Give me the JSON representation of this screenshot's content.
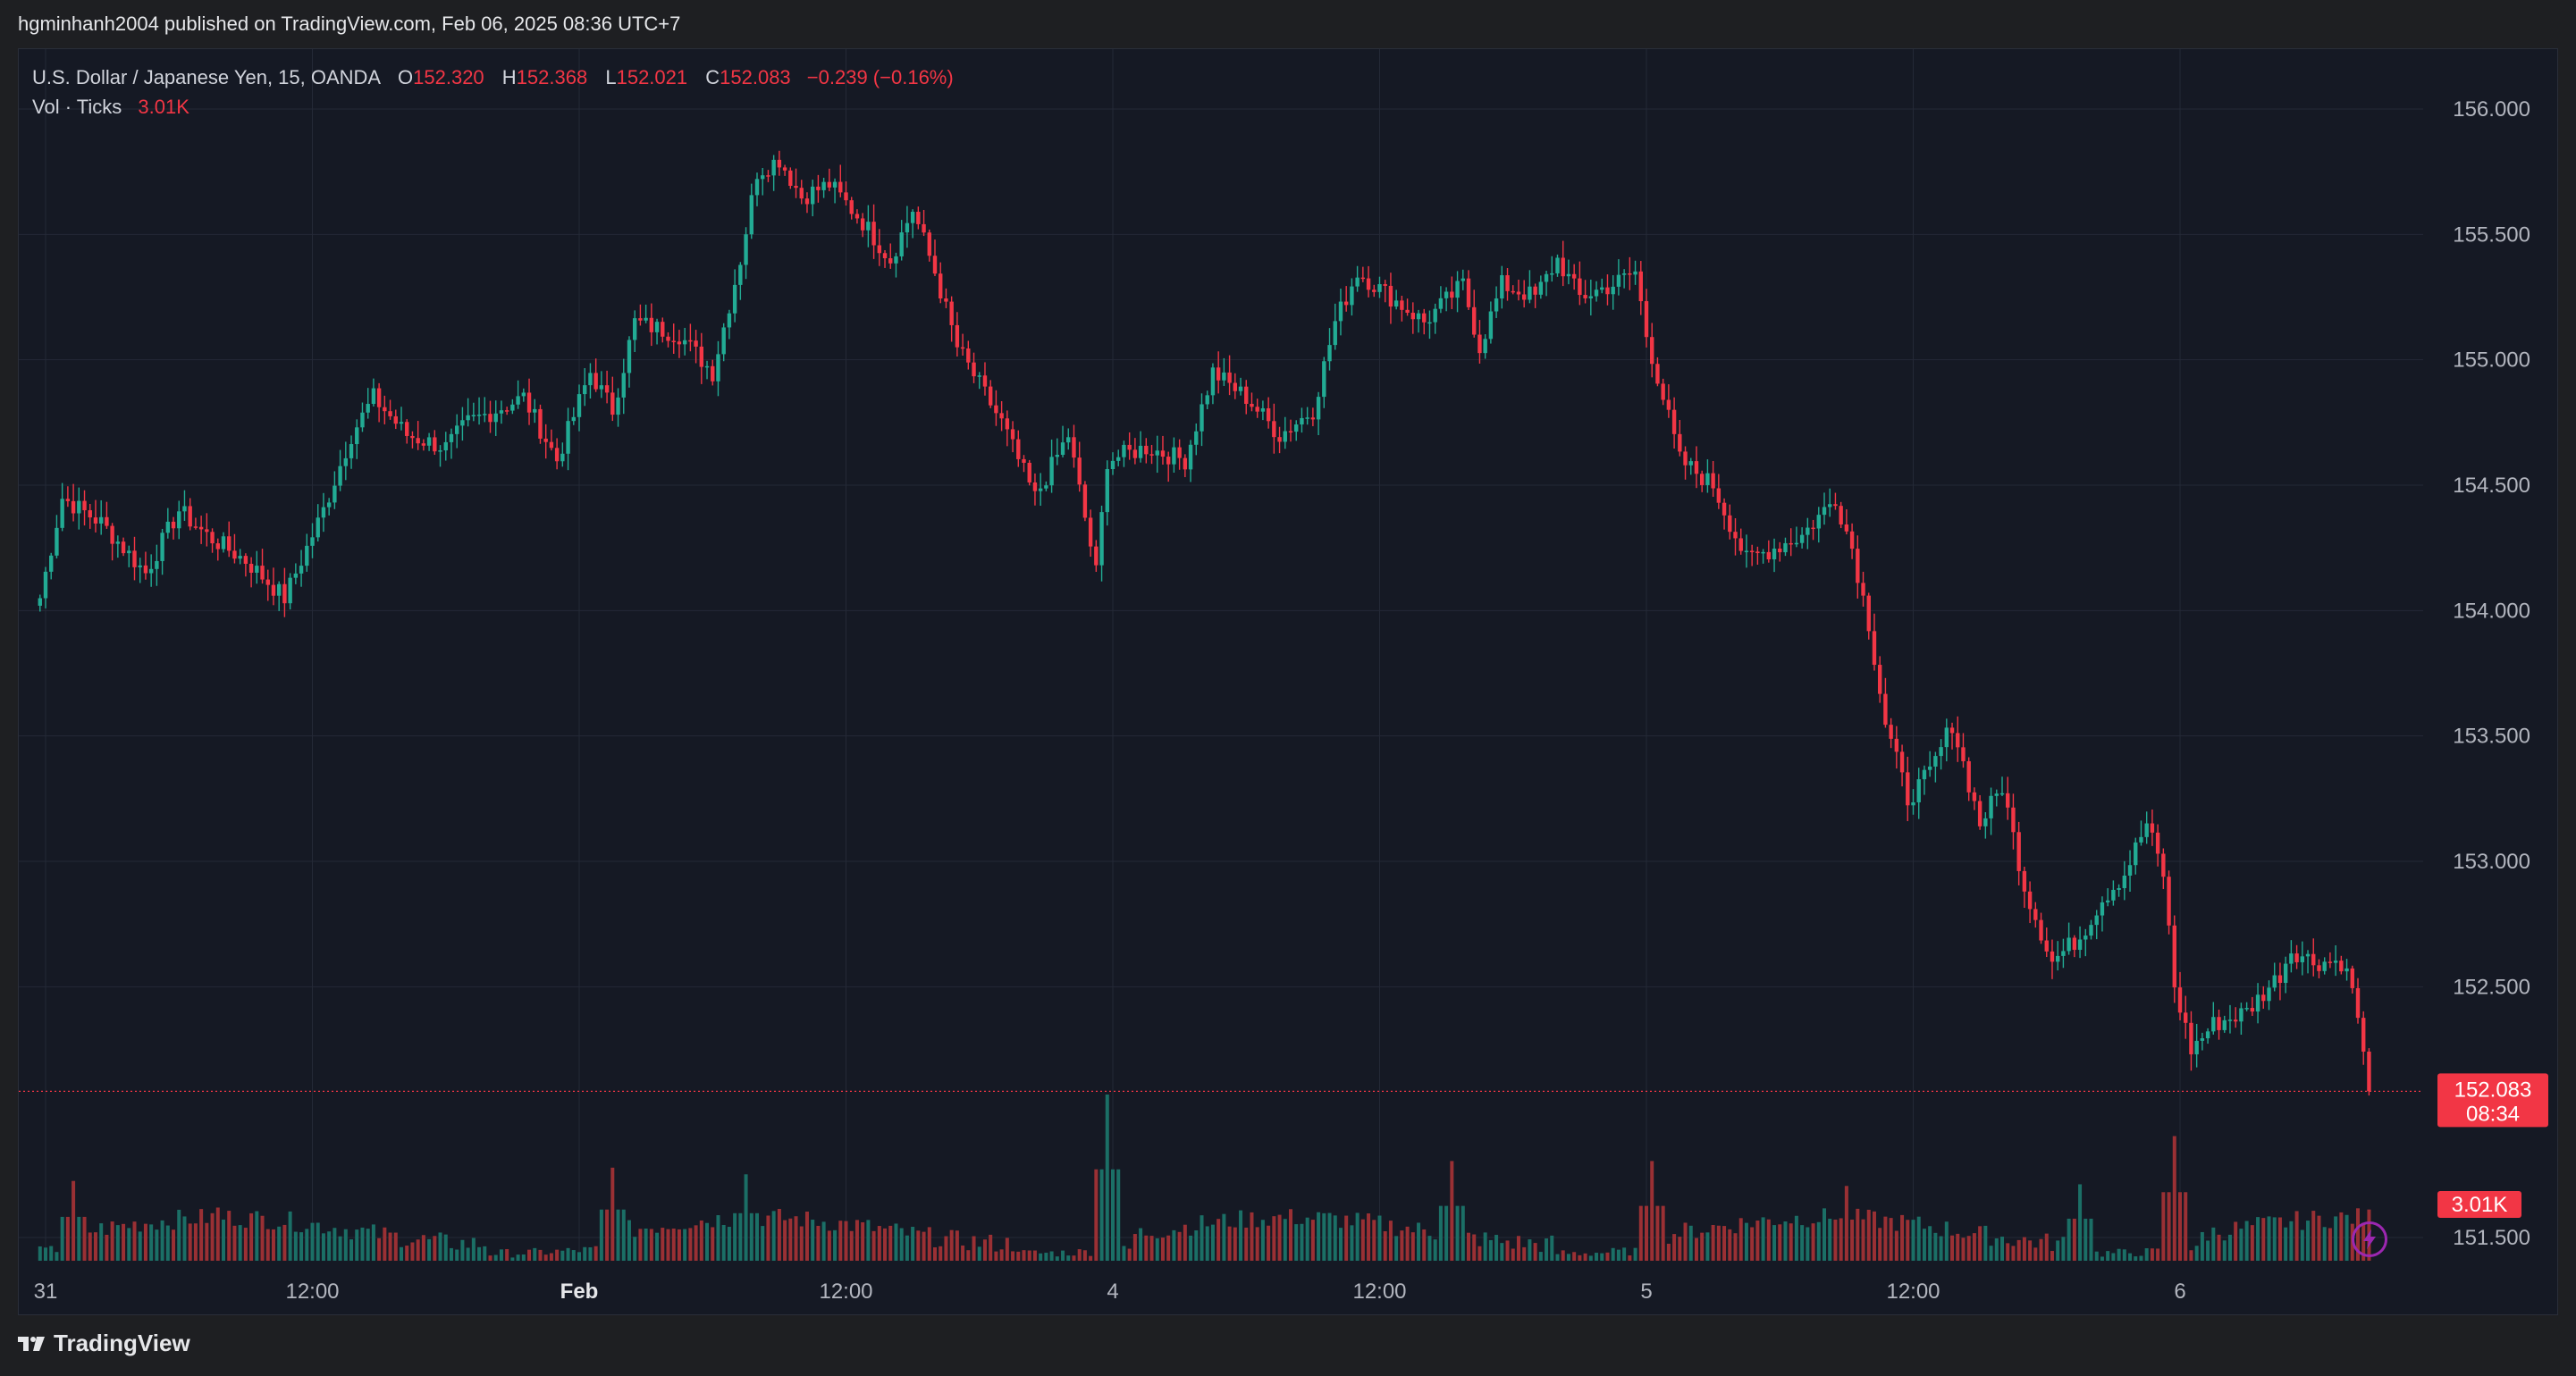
{
  "header": {
    "published_text": "hgminhanh2004 published on TradingView.com, Feb 06, 2025 08:36 UTC+7"
  },
  "legend": {
    "symbol": "U.S. Dollar / Japanese Yen, 15, OANDA",
    "o_key": "O",
    "o_val": "152.320",
    "h_key": "H",
    "h_val": "152.368",
    "l_key": "L",
    "l_val": "152.021",
    "c_key": "C",
    "c_val": "152.083",
    "change": "−0.239 (−0.16%)",
    "vol_label": "Vol · Ticks",
    "vol_val": "3.01K"
  },
  "footer": {
    "brand": "TradingView"
  },
  "colors": {
    "up": "#22ab94",
    "down": "#f23645",
    "vol_up": "#1b6f66",
    "vol_down": "#9a3034",
    "background": "#151924",
    "grid": "#242936",
    "text": "#b2b5be",
    "current_price": "#f23645"
  },
  "icons": {
    "bolt": "lightning-bolt-icon",
    "logo": "tradingview-logo-icon"
  },
  "chart_data": {
    "type": "candlestick",
    "title": "U.S. Dollar / Japanese Yen, 15, OANDA",
    "timeframe": "15",
    "ylim": [
      151.32,
      156.3
    ],
    "y_ticks": [
      "156.000",
      "155.500",
      "155.000",
      "154.500",
      "154.000",
      "153.500",
      "153.000",
      "152.500",
      "151.500"
    ],
    "x_ticks": [
      {
        "label": "31",
        "bold": false,
        "at": "2025-01-31 00:00"
      },
      {
        "label": "12:00",
        "bold": false,
        "at": "2025-01-31 12:00"
      },
      {
        "label": "Feb",
        "bold": true,
        "at": "2025-02-03 00:00"
      },
      {
        "label": "12:00",
        "bold": false,
        "at": "2025-02-03 12:00"
      },
      {
        "label": "4",
        "bold": false,
        "at": "2025-02-04 00:00"
      },
      {
        "label": "12:00",
        "bold": false,
        "at": "2025-02-04 12:00"
      },
      {
        "label": "5",
        "bold": false,
        "at": "2025-02-05 00:00"
      },
      {
        "label": "12:00",
        "bold": false,
        "at": "2025-02-05 12:00"
      },
      {
        "label": "6",
        "bold": false,
        "at": "2025-02-06 00:00"
      }
    ],
    "time_range": [
      "2025-01-30 23:45",
      "2025-02-06 08:30"
    ],
    "anchors": [
      {
        "t": "2025-01-30 23:45",
        "price": 154.05
      },
      {
        "t": "2025-01-31 00:45",
        "price": 154.45
      },
      {
        "t": "2025-01-31 02:30",
        "price": 154.35
      },
      {
        "t": "2025-01-31 04:30",
        "price": 154.15
      },
      {
        "t": "2025-01-31 06:00",
        "price": 154.4
      },
      {
        "t": "2025-01-31 07:15",
        "price": 154.3
      },
      {
        "t": "2025-01-31 09:00",
        "price": 154.2
      },
      {
        "t": "2025-01-31 10:45",
        "price": 154.05
      },
      {
        "t": "2025-01-31 12:30",
        "price": 154.4
      },
      {
        "t": "2025-01-31 13:45",
        "price": 154.7
      },
      {
        "t": "2025-01-31 14:45",
        "price": 154.85
      },
      {
        "t": "2025-01-31 16:15",
        "price": 154.7
      },
      {
        "t": "2025-01-31 18:00",
        "price": 154.65
      },
      {
        "t": "2025-01-31 19:00",
        "price": 154.75
      },
      {
        "t": "2025-01-31 21:30",
        "price": 154.85
      },
      {
        "t": "2025-01-31 23:00",
        "price": 154.6
      },
      {
        "t": "2025-02-03 00:30",
        "price": 154.95
      },
      {
        "t": "2025-02-03 01:30",
        "price": 154.8
      },
      {
        "t": "2025-02-03 02:30",
        "price": 155.15
      },
      {
        "t": "2025-02-03 04:30",
        "price": 155.1
      },
      {
        "t": "2025-02-03 06:00",
        "price": 154.95
      },
      {
        "t": "2025-02-03 07:15",
        "price": 155.4
      },
      {
        "t": "2025-02-03 08:00",
        "price": 155.75
      },
      {
        "t": "2025-02-03 09:00",
        "price": 155.8
      },
      {
        "t": "2025-02-03 10:00",
        "price": 155.65
      },
      {
        "t": "2025-02-03 11:15",
        "price": 155.7
      },
      {
        "t": "2025-02-03 12:45",
        "price": 155.55
      },
      {
        "t": "2025-02-03 14:00",
        "price": 155.4
      },
      {
        "t": "2025-02-03 15:00",
        "price": 155.6
      },
      {
        "t": "2025-02-03 16:00",
        "price": 155.35
      },
      {
        "t": "2025-02-03 17:00",
        "price": 155.05
      },
      {
        "t": "2025-02-03 19:00",
        "price": 154.75
      },
      {
        "t": "2025-02-03 20:30",
        "price": 154.45
      },
      {
        "t": "2025-02-03 22:00",
        "price": 154.7
      },
      {
        "t": "2025-02-03 23:15",
        "price": 154.15
      },
      {
        "t": "2025-02-03 23:45",
        "price": 154.6
      },
      {
        "t": "2025-02-04 01:30",
        "price": 154.65
      },
      {
        "t": "2025-02-04 03:15",
        "price": 154.6
      },
      {
        "t": "2025-02-04 04:30",
        "price": 154.95
      },
      {
        "t": "2025-02-04 06:00",
        "price": 154.85
      },
      {
        "t": "2025-02-04 07:30",
        "price": 154.7
      },
      {
        "t": "2025-02-04 09:00",
        "price": 154.8
      },
      {
        "t": "2025-02-04 10:00",
        "price": 155.15
      },
      {
        "t": "2025-02-04 11:00",
        "price": 155.35
      },
      {
        "t": "2025-02-04 12:30",
        "price": 155.25
      },
      {
        "t": "2025-02-04 14:00",
        "price": 155.15
      },
      {
        "t": "2025-02-04 15:45",
        "price": 155.3
      },
      {
        "t": "2025-02-04 16:30",
        "price": 155.05
      },
      {
        "t": "2025-02-04 17:30",
        "price": 155.3
      },
      {
        "t": "2025-02-04 19:00",
        "price": 155.25
      },
      {
        "t": "2025-02-04 20:00",
        "price": 155.4
      },
      {
        "t": "2025-02-04 21:00",
        "price": 155.25
      },
      {
        "t": "2025-02-04 22:30",
        "price": 155.3
      },
      {
        "t": "2025-02-04 23:30",
        "price": 155.35
      },
      {
        "t": "2025-02-05 00:00",
        "price": 155.1
      },
      {
        "t": "2025-02-05 00:45",
        "price": 154.85
      },
      {
        "t": "2025-02-05 01:30",
        "price": 154.6
      },
      {
        "t": "2025-02-05 03:00",
        "price": 154.5
      },
      {
        "t": "2025-02-05 04:30",
        "price": 154.2
      },
      {
        "t": "2025-02-05 07:00",
        "price": 154.3
      },
      {
        "t": "2025-02-05 08:30",
        "price": 154.45
      },
      {
        "t": "2025-02-05 09:15",
        "price": 154.25
      },
      {
        "t": "2025-02-05 10:00",
        "price": 153.95
      },
      {
        "t": "2025-02-05 10:45",
        "price": 153.55
      },
      {
        "t": "2025-02-05 11:45",
        "price": 153.25
      },
      {
        "t": "2025-02-05 12:45",
        "price": 153.35
      },
      {
        "t": "2025-02-05 13:45",
        "price": 153.55
      },
      {
        "t": "2025-02-05 15:00",
        "price": 153.15
      },
      {
        "t": "2025-02-05 16:00",
        "price": 153.3
      },
      {
        "t": "2025-02-05 17:00",
        "price": 152.9
      },
      {
        "t": "2025-02-05 18:15",
        "price": 152.6
      },
      {
        "t": "2025-02-05 19:30",
        "price": 152.7
      },
      {
        "t": "2025-02-05 20:30",
        "price": 152.85
      },
      {
        "t": "2025-02-05 21:30",
        "price": 152.95
      },
      {
        "t": "2025-02-05 22:30",
        "price": 153.15
      },
      {
        "t": "2025-02-05 23:15",
        "price": 152.95
      },
      {
        "t": "2025-02-05 23:45",
        "price": 152.5
      },
      {
        "t": "2025-02-06 00:30",
        "price": 152.25
      },
      {
        "t": "2025-02-06 01:30",
        "price": 152.35
      },
      {
        "t": "2025-02-06 03:00",
        "price": 152.4
      },
      {
        "t": "2025-02-06 04:30",
        "price": 152.55
      },
      {
        "t": "2025-02-06 05:00",
        "price": 152.65
      },
      {
        "t": "2025-02-06 06:00",
        "price": 152.6
      },
      {
        "t": "2025-02-06 07:15",
        "price": 152.6
      },
      {
        "t": "2025-02-06 07:45",
        "price": 152.5
      },
      {
        "t": "2025-02-06 08:30",
        "price": 152.08
      }
    ],
    "volume_spikes": [
      {
        "t": "2025-01-31 01:15",
        "rel": 0.48
      },
      {
        "t": "2025-01-31 07:45",
        "rel": 0.32
      },
      {
        "t": "2025-02-03 01:30",
        "rel": 0.56
      },
      {
        "t": "2025-02-03 07:30",
        "rel": 0.52
      },
      {
        "t": "2025-02-03 23:45",
        "rel": 1.0
      },
      {
        "t": "2025-02-04 15:15",
        "rel": 0.6
      },
      {
        "t": "2025-02-05 00:15",
        "rel": 0.6
      },
      {
        "t": "2025-02-05 09:00",
        "rel": 0.45
      },
      {
        "t": "2025-02-05 19:30",
        "rel": 0.46
      },
      {
        "t": "2025-02-05 23:45",
        "rel": 0.75
      }
    ],
    "current_price": {
      "value": "152.083",
      "countdown": "08:34"
    },
    "last_volume": {
      "value": "3.01K"
    },
    "grid": true
  }
}
